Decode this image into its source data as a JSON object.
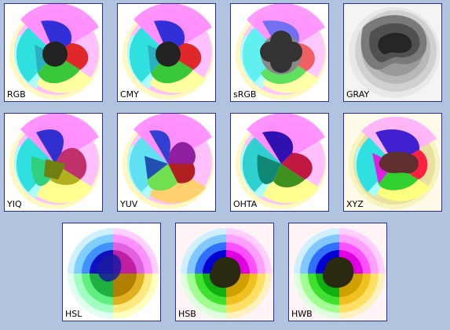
{
  "panels": [
    {
      "label": "RGB"
    },
    {
      "label": "CMY"
    },
    {
      "label": "sRGB"
    },
    {
      "label": "GRAY"
    },
    {
      "label": "YIQ"
    },
    {
      "label": "YUV"
    },
    {
      "label": "OHTA"
    },
    {
      "label": "XYZ"
    },
    {
      "label": "HSL"
    },
    {
      "label": "HSB"
    },
    {
      "label": "HWB"
    }
  ],
  "colors": {
    "page_background": "#b0c4de",
    "tile_border": "#2a2aa8"
  }
}
